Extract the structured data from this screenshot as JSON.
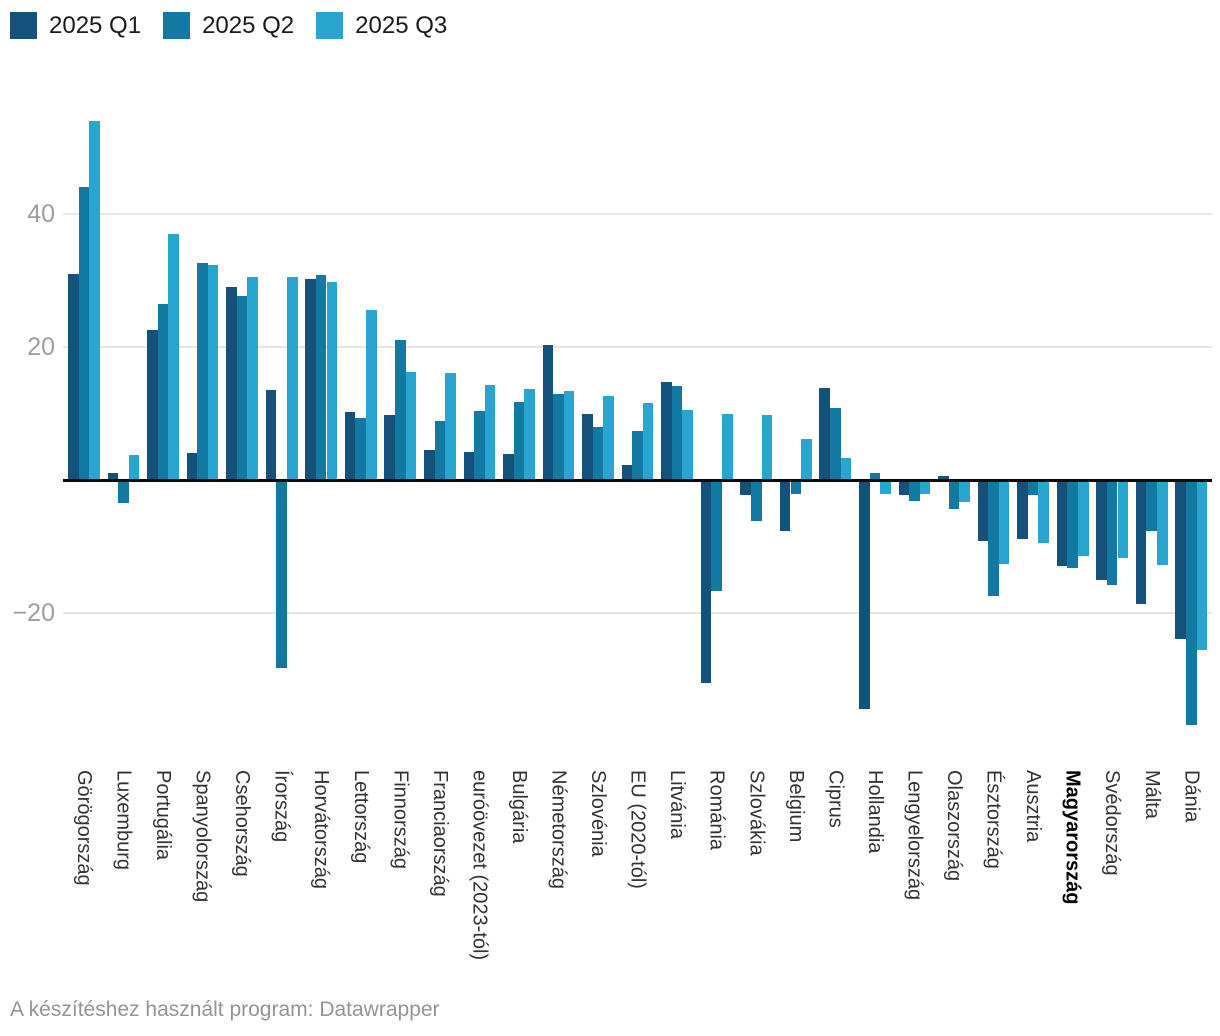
{
  "chart_data": {
    "type": "bar",
    "title": "",
    "legend_position": "top-left",
    "categories": [
      "Görögország",
      "Luxemburg",
      "Portugália",
      "Spanyolország",
      "Csehország",
      "Írország",
      "Horvátország",
      "Lettország",
      "Finnország",
      "Franciaország",
      "euróövezet (2023-tól)",
      "Bulgária",
      "Németország",
      "Szlovénia",
      "EU (2020-tól)",
      "Litvánia",
      "Románia",
      "Szlovákia",
      "Belgium",
      "Ciprus",
      "Hollandia",
      "Lengyelország",
      "Olaszország",
      "Észtország",
      "Ausztria",
      "Magyarország",
      "Svédország",
      "Málta",
      "Dánia"
    ],
    "emphasized_category": "Magyarország",
    "series": [
      {
        "name": "2025 Q1",
        "color": "#15527b",
        "values": [
          31,
          1.1,
          22.5,
          4.1,
          29,
          13.6,
          30.2,
          10.3,
          9.8,
          4.5,
          4.2,
          3.9,
          20.3,
          9.9,
          2.2,
          14.8,
          -30.3,
          -1.9,
          -7.3,
          13.9,
          -34.1,
          -2.0,
          0.6,
          -8.9,
          -8.6,
          -12.6,
          -14.8,
          -18.3,
          -23.6
        ]
      },
      {
        "name": "2025 Q2",
        "color": "#1279a3",
        "values": [
          44,
          -3.2,
          26.5,
          32.7,
          27.6,
          -28,
          30.9,
          9.3,
          21,
          8.9,
          10.4,
          11.8,
          13,
          8,
          7.3,
          14.1,
          -16.4,
          -5.8,
          -1.8,
          10.9,
          1.0,
          -2.9,
          -4.1,
          -17.2,
          -2.0,
          -12.9,
          -15.5,
          -7.4,
          -36.5
        ]
      },
      {
        "name": "2025 Q3",
        "color": "#29a6cf",
        "values": [
          54,
          3.7,
          37,
          32.4,
          30.6,
          30.5,
          29.8,
          25.6,
          16.2,
          16.1,
          14.3,
          13.7,
          13.4,
          12.6,
          11.6,
          10.6,
          9.9,
          9.8,
          6.1,
          3.3,
          -1.8,
          -1.8,
          -3.0,
          -12.4,
          -9.1,
          -11.2,
          -11.5,
          -12.5,
          -25.2
        ]
      }
    ],
    "y_axis": {
      "ticks": [
        {
          "value": 40,
          "label": "40"
        },
        {
          "value": 20,
          "label": "20"
        },
        {
          "value": -20,
          "label": "−20"
        }
      ],
      "ylim": [
        -38,
        56
      ],
      "grid": true,
      "zero_line": true
    }
  },
  "footer": {
    "credit": "A készítéshez használt program: Datawrapper"
  }
}
